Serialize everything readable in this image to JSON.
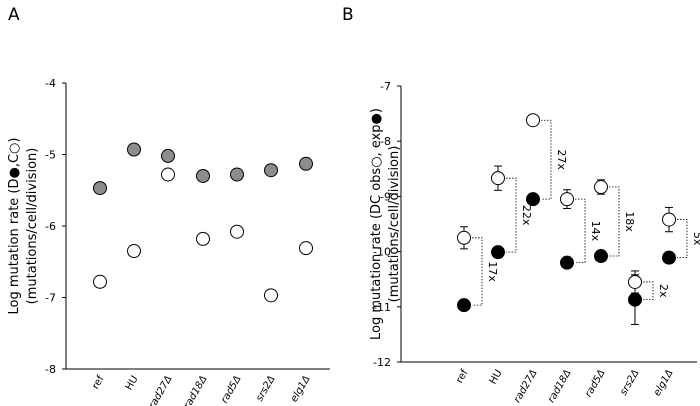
{
  "chart_data": [
    {
      "panel": "A",
      "type": "scatter",
      "ylabel": "Log mutation rate (D●,C○)",
      "ylabel2": "(mutations/cell/division)",
      "ylim": [
        -8,
        -4
      ],
      "yticks": [
        -4,
        -5,
        -6,
        -7,
        -8
      ],
      "categories": [
        "ref",
        "HU",
        "rad27Δ",
        "rad18Δ",
        "rad5Δ",
        "srs2Δ",
        "elg1Δ"
      ],
      "italic": [
        false,
        false,
        true,
        true,
        true,
        true,
        true
      ],
      "series": [
        {
          "name": "D",
          "marker": "filled-grey",
          "values": [
            -5.47,
            -4.93,
            -5.02,
            -5.3,
            -5.28,
            -5.22,
            -5.13
          ]
        },
        {
          "name": "C",
          "marker": "open",
          "values": [
            -6.78,
            -6.35,
            -5.28,
            -6.18,
            -6.08,
            -6.97,
            -6.31
          ]
        }
      ]
    },
    {
      "panel": "B",
      "type": "scatter",
      "ylabel": "Log mutation rate (DC obs○, exp●)",
      "ylabel2": "(mutations/cell/division)",
      "ylim": [
        -12,
        -7
      ],
      "yticks": [
        -7,
        -8,
        -9,
        -10,
        -11,
        -12
      ],
      "categories": [
        "ref",
        "HU",
        "rad27Δ",
        "rad18Δ",
        "rad5Δ",
        "srs2Δ",
        "elg1Δ"
      ],
      "italic": [
        false,
        false,
        true,
        true,
        true,
        true,
        true
      ],
      "series": [
        {
          "name": "obs",
          "marker": "open",
          "values": [
            -9.75,
            -8.67,
            -7.62,
            -9.05,
            -8.83,
            -10.55,
            -9.42
          ],
          "err": [
            0.2,
            0.22,
            0,
            0.17,
            0.13,
            0.2,
            0.22
          ]
        },
        {
          "name": "exp",
          "marker": "filled-black",
          "values": [
            -10.97,
            -10.01,
            -9.05,
            -10.2,
            -10.08,
            -10.87,
            -10.11
          ],
          "err": [
            0,
            0,
            0,
            0,
            0,
            0.45,
            0.1
          ]
        }
      ],
      "fold_labels": [
        "17x",
        "22x",
        "27x",
        "14x",
        "18x",
        "2x",
        "5x"
      ]
    }
  ],
  "panel_labels": [
    "A",
    "B"
  ]
}
